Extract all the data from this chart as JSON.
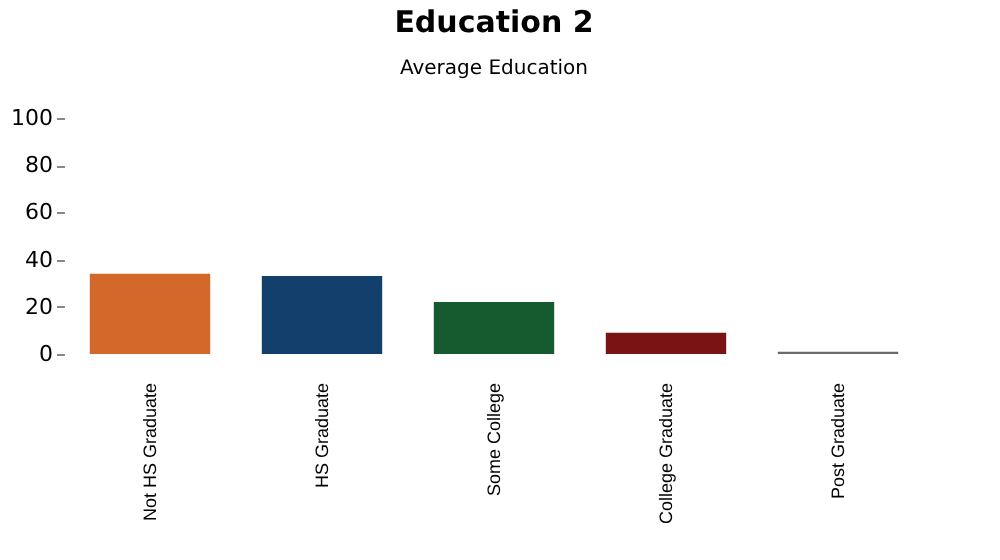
{
  "chart_data": {
    "type": "bar",
    "title": "Education 2",
    "subtitle": "Average Education",
    "categories": [
      "Not HS Graduate",
      "HS Graduate",
      "Some College",
      "College Graduate",
      "Post Graduate"
    ],
    "values": [
      34,
      33,
      22,
      9,
      1
    ],
    "colors": [
      "#d2692a",
      "#123f6b",
      "#165a30",
      "#7a1414",
      "#6a6a6a"
    ],
    "ylim": [
      0,
      100
    ],
    "yticks": [
      0,
      20,
      40,
      60,
      80,
      100
    ],
    "grid": false
  }
}
